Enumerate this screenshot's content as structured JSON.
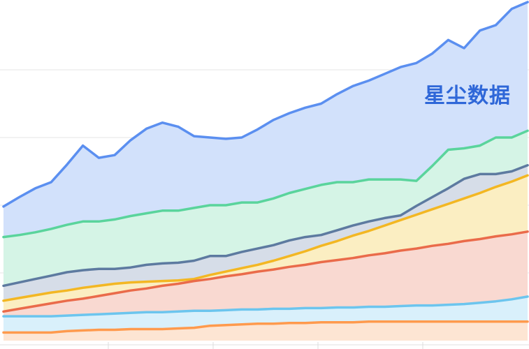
{
  "watermark": {
    "text": "星尘数据",
    "color": "#2f67d8"
  },
  "chart_data": {
    "type": "area",
    "stacked": false,
    "title": "",
    "xlabel": "",
    "ylabel": "",
    "grid": "horizontal",
    "legend": "none",
    "axes_visible": false,
    "ylim": [
      0,
      500
    ],
    "x_count": 34,
    "series": [
      {
        "stroke": "#ff9a4d",
        "fill": "#fde5d3",
        "values": [
          12,
          12,
          12,
          12,
          14,
          15,
          16,
          16,
          17,
          17,
          17,
          18,
          19,
          22,
          23,
          24,
          25,
          25,
          26,
          26,
          27,
          27,
          27,
          28,
          28,
          28,
          28,
          28,
          28,
          28,
          28,
          28,
          28,
          28
        ]
      },
      {
        "stroke": "#6cc5ee",
        "fill": "#d9f0fb",
        "values": [
          36,
          36,
          36,
          36,
          37,
          38,
          39,
          40,
          41,
          42,
          42,
          43,
          44,
          44,
          45,
          46,
          46,
          47,
          47,
          48,
          48,
          49,
          49,
          50,
          50,
          51,
          52,
          52,
          53,
          54,
          56,
          58,
          61,
          65
        ]
      },
      {
        "stroke": "#ea6b4a",
        "fill": "#f9d9d1",
        "values": [
          43,
          47,
          51,
          55,
          59,
          62,
          66,
          70,
          74,
          77,
          81,
          84,
          88,
          91,
          95,
          98,
          102,
          105,
          109,
          112,
          116,
          119,
          122,
          126,
          129,
          133,
          136,
          140,
          143,
          147,
          150,
          154,
          157,
          161
        ]
      },
      {
        "stroke": "#f3b723",
        "fill": "#fbeec2",
        "values": [
          59,
          63,
          67,
          71,
          74,
          78,
          81,
          84,
          86,
          87,
          88,
          89,
          91,
          97,
          102,
          107,
          112,
          118,
          125,
          132,
          140,
          147,
          155,
          162,
          170,
          178,
          186,
          194,
          202,
          210,
          218,
          227,
          235,
          244
        ]
      },
      {
        "stroke": "#5d7aa0",
        "fill": "#d6dde8",
        "values": [
          81,
          86,
          91,
          96,
          101,
          104,
          106,
          106,
          108,
          112,
          114,
          115,
          118,
          125,
          125,
          131,
          136,
          141,
          148,
          153,
          156,
          163,
          170,
          176,
          181,
          185,
          199,
          212,
          225,
          239,
          246,
          246,
          250,
          259
        ]
      },
      {
        "stroke": "#5ad49c",
        "fill": "#d5f4e6",
        "values": [
          153,
          156,
          160,
          165,
          171,
          176,
          176,
          179,
          184,
          188,
          192,
          192,
          196,
          200,
          200,
          204,
          204,
          210,
          218,
          224,
          230,
          234,
          234,
          238,
          238,
          238,
          236,
          258,
          282,
          284,
          288,
          300,
          300,
          310
        ]
      },
      {
        "stroke": "#5b8ff0",
        "fill": "#d2e1fb",
        "values": [
          198,
          212,
          225,
          234,
          260,
          288,
          270,
          274,
          296,
          313,
          322,
          316,
          302,
          300,
          298,
          300,
          312,
          326,
          336,
          344,
          350,
          364,
          376,
          384,
          394,
          404,
          410,
          424,
          444,
          432,
          458,
          466,
          490,
          500
        ]
      }
    ]
  }
}
